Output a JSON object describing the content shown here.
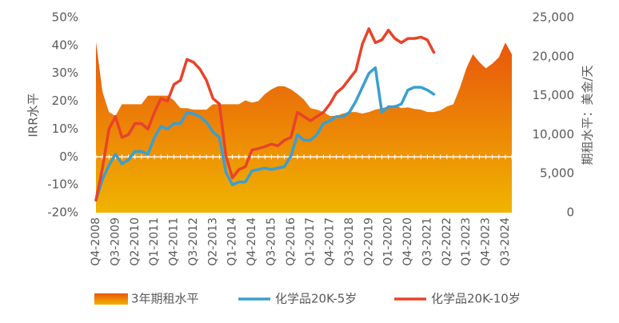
{
  "chart_data": {
    "type": "combo",
    "y_label": "IRR水平",
    "y2_label": "期租水平：美金/天",
    "categories": [
      "Q4-2008",
      null,
      null,
      "Q3-2009",
      null,
      null,
      "Q2-2010",
      null,
      null,
      "Q1-2011",
      null,
      null,
      "Q4-2011",
      null,
      null,
      "Q3-2012",
      null,
      null,
      "Q2-2013",
      null,
      null,
      "Q1-2014",
      null,
      null,
      "Q4-2014",
      null,
      null,
      "Q3-2015",
      null,
      null,
      "Q2-2016",
      null,
      null,
      "Q1-2017",
      null,
      null,
      "Q4-2017",
      null,
      null,
      "Q3-2018",
      null,
      null,
      "Q2-2019",
      null,
      null,
      "Q1-2020",
      null,
      null,
      "Q4-2020",
      null,
      null,
      "Q3-2021",
      null,
      null,
      "Q2-2022",
      null,
      null,
      "Q1-2023",
      null,
      null,
      "Q4-2023",
      null,
      null,
      "Q3-2024",
      null
    ],
    "series": [
      {
        "name": "3年期租水平",
        "type": "area",
        "axis": "y2",
        "color": "#e8560c",
        "color2": "#f0b400",
        "values": [
          21900,
          15500,
          12900,
          12400,
          13900,
          13900,
          13900,
          13900,
          15000,
          15000,
          15000,
          15000,
          14400,
          13400,
          13400,
          13200,
          13200,
          13200,
          13900,
          13900,
          13900,
          13900,
          13900,
          14400,
          14100,
          14300,
          15200,
          15800,
          16200,
          16200,
          15800,
          15200,
          14500,
          13400,
          13200,
          12900,
          12400,
          12400,
          12700,
          12900,
          12900,
          12700,
          12900,
          13200,
          13400,
          13600,
          13800,
          13400,
          13500,
          13300,
          13200,
          12900,
          12900,
          13100,
          13600,
          13900,
          16000,
          18500,
          20300,
          19300,
          18500,
          19100,
          19900,
          21800,
          20300
        ]
      },
      {
        "name": "化学品20K-5岁",
        "type": "line",
        "color": "#3a9fd0",
        "values": [
          -15.5,
          -8,
          -3,
          1,
          -2.5,
          -1,
          2,
          2,
          1,
          7,
          11,
          10,
          12,
          12,
          16,
          15.5,
          14.5,
          12.5,
          9,
          7,
          -5.5,
          -10,
          -9,
          -9,
          -5,
          -4.5,
          -4,
          -4.5,
          -4,
          -3.5,
          0.3,
          8,
          6,
          6,
          8,
          12,
          13,
          14.5,
          14.5,
          16,
          20,
          25,
          30,
          32,
          16,
          18,
          18,
          19,
          24,
          25,
          25,
          24,
          22.5,
          null,
          null,
          null,
          null,
          null,
          null,
          null,
          null,
          null,
          null,
          null,
          null
        ]
      },
      {
        "name": "化学品20K-10岁",
        "type": "line",
        "color": "#e8432a",
        "values": [
          -15.5,
          -4,
          10,
          14.5,
          7,
          8,
          12,
          12,
          10,
          16,
          21,
          20,
          26,
          27.5,
          35,
          34,
          31.5,
          27.5,
          21,
          19,
          0.3,
          -7.5,
          -4.5,
          -3.5,
          2.5,
          3,
          3.7,
          4.6,
          4,
          6,
          7,
          16,
          14.5,
          13,
          14.5,
          16,
          19,
          23,
          25,
          28,
          31,
          40.5,
          46,
          41,
          42,
          45.5,
          42.5,
          41,
          42.5,
          42.5,
          43,
          42,
          37.5,
          null,
          null,
          null,
          null,
          null,
          null,
          null,
          null,
          null,
          null,
          null,
          null
        ]
      }
    ],
    "ylim": [
      -20,
      50
    ],
    "yticks": [
      {
        "value": -20,
        "label": "-20%"
      },
      {
        "value": -10,
        "label": "-10%"
      },
      {
        "value": 0,
        "label": "0%"
      },
      {
        "value": 10,
        "label": "10%"
      },
      {
        "value": 20,
        "label": "20%"
      },
      {
        "value": 30,
        "label": "30%"
      },
      {
        "value": 40,
        "label": "40%"
      },
      {
        "value": 50,
        "label": "50%"
      }
    ],
    "y2lim": [
      0,
      25000
    ],
    "y2ticks": [
      0,
      {
        "value": 5000,
        "label": "5,000"
      },
      {
        "value": 10000,
        "label": "10,000"
      },
      {
        "value": 15000,
        "label": "15,000"
      },
      {
        "value": 20000,
        "label": "20,000"
      },
      {
        "value": 25000,
        "label": "25,000"
      }
    ],
    "legend": "bottom"
  }
}
